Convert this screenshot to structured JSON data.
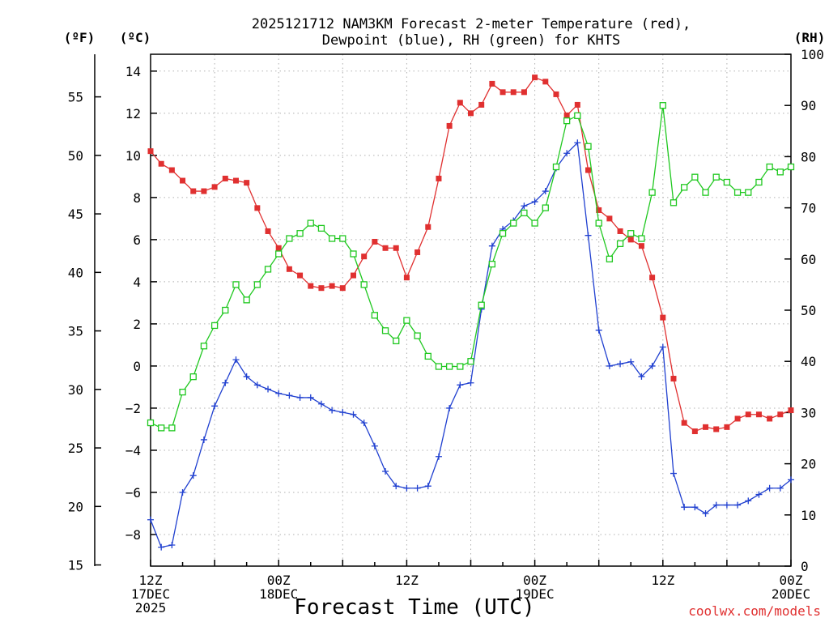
{
  "chart_data": {
    "type": "line",
    "title_line1": "2025121712 NAM3KM Forecast 2-meter Temperature (red),",
    "title_line2": "Dewpoint (blue), RH (green) for KHTS",
    "xlabel": "Forecast Time (UTC)",
    "credit": "coolwx.com/models",
    "units": {
      "fahrenheit": "(ºF)",
      "celsius": "(ºC)",
      "rh": "(RH)"
    },
    "x_hours": [
      0,
      1,
      2,
      3,
      4,
      5,
      6,
      7,
      8,
      9,
      10,
      11,
      12,
      13,
      14,
      15,
      16,
      17,
      18,
      19,
      20,
      21,
      22,
      23,
      24,
      25,
      26,
      27,
      28,
      29,
      30,
      31,
      32,
      33,
      34,
      35,
      36,
      37,
      38,
      39,
      40,
      41,
      42,
      43,
      44,
      45,
      46,
      47,
      48,
      49,
      50,
      51,
      52,
      53,
      54,
      55,
      56,
      57,
      58,
      59,
      60
    ],
    "xlim": [
      0,
      60
    ],
    "ylim_celsius": [
      -9.5,
      14.8
    ],
    "ylim_rh": [
      0,
      100
    ],
    "fahrenheit_ticks": [
      15,
      20,
      25,
      30,
      35,
      40,
      45,
      50,
      55
    ],
    "celsius_ticks": [
      -8,
      -6,
      -4,
      -2,
      0,
      2,
      4,
      6,
      8,
      10,
      12,
      14
    ],
    "celsius_tick_labels": [
      "−8",
      "−6",
      "−4",
      "−2",
      "0",
      "2",
      "4",
      "6",
      "8",
      "10",
      "12",
      "14"
    ],
    "rh_ticks": [
      0,
      10,
      20,
      30,
      40,
      50,
      60,
      70,
      80,
      90,
      100
    ],
    "x_ticks": [
      {
        "hour": 0,
        "lines": [
          "12Z",
          "17DEC",
          "2025"
        ]
      },
      {
        "hour": 12,
        "lines": [
          "00Z",
          "18DEC"
        ]
      },
      {
        "hour": 24,
        "lines": [
          "12Z"
        ]
      },
      {
        "hour": 36,
        "lines": [
          "00Z",
          "19DEC"
        ]
      },
      {
        "hour": 48,
        "lines": [
          "12Z"
        ]
      },
      {
        "hour": 60,
        "lines": [
          "00Z",
          "20DEC"
        ]
      }
    ],
    "series": [
      {
        "name": "2-meter Temperature",
        "unit": "C",
        "color": "#e03030",
        "marker": "filled-square",
        "values": [
          10.2,
          9.6,
          9.3,
          8.8,
          8.3,
          8.3,
          8.5,
          8.9,
          8.8,
          8.7,
          7.5,
          6.4,
          5.6,
          4.6,
          4.3,
          3.8,
          3.7,
          3.8,
          3.7,
          4.3,
          5.2,
          5.9,
          5.6,
          5.6,
          4.2,
          5.4,
          6.6,
          8.9,
          11.4,
          12.5,
          12.0,
          12.4,
          13.4,
          13.0,
          13.0,
          13.0,
          13.7,
          13.5,
          12.9,
          11.9,
          12.4,
          9.3,
          7.4,
          7.0,
          6.4,
          6.0,
          5.7,
          4.2,
          2.3,
          -0.6,
          -2.7,
          -3.1,
          -2.9,
          -3.0,
          -2.9,
          -2.5,
          -2.3,
          -2.3,
          -2.5,
          -2.3,
          -2.1
        ]
      },
      {
        "name": "Dewpoint",
        "unit": "C",
        "color": "#2040d0",
        "marker": "plus",
        "values": [
          -7.3,
          -8.6,
          -8.5,
          -6.0,
          -5.2,
          -3.5,
          -1.9,
          -0.8,
          0.3,
          -0.5,
          -0.9,
          -1.1,
          -1.3,
          -1.4,
          -1.5,
          -1.5,
          -1.8,
          -2.1,
          -2.2,
          -2.3,
          -2.7,
          -3.8,
          -5.0,
          -5.7,
          -5.8,
          -5.8,
          -5.7,
          -4.3,
          -2.0,
          -0.9,
          -0.8,
          2.7,
          5.7,
          6.5,
          6.9,
          7.6,
          7.8,
          8.3,
          9.4,
          10.1,
          10.6,
          6.2,
          1.7,
          0.0,
          0.1,
          0.2,
          -0.5,
          0.0,
          0.9,
          -5.1,
          -6.7,
          -6.7,
          -7.0,
          -6.6,
          -6.6,
          -6.6,
          -6.4,
          -6.1,
          -5.8,
          -5.8,
          -5.4
        ]
      },
      {
        "name": "RH",
        "unit": "%",
        "color": "#20c820",
        "marker": "open-square",
        "values": [
          28,
          27,
          27,
          34,
          37,
          43,
          47,
          50,
          55,
          52,
          55,
          58,
          61,
          64,
          65,
          67,
          66,
          64,
          64,
          61,
          55,
          49,
          46,
          44,
          48,
          45,
          41,
          39,
          39,
          39,
          40,
          51,
          59,
          65,
          67,
          69,
          67,
          70,
          78,
          87,
          88,
          82,
          67,
          60,
          63,
          65,
          64,
          73,
          90,
          71,
          74,
          76,
          73,
          76,
          75,
          73,
          73,
          75,
          78,
          77,
          78
        ]
      }
    ]
  }
}
